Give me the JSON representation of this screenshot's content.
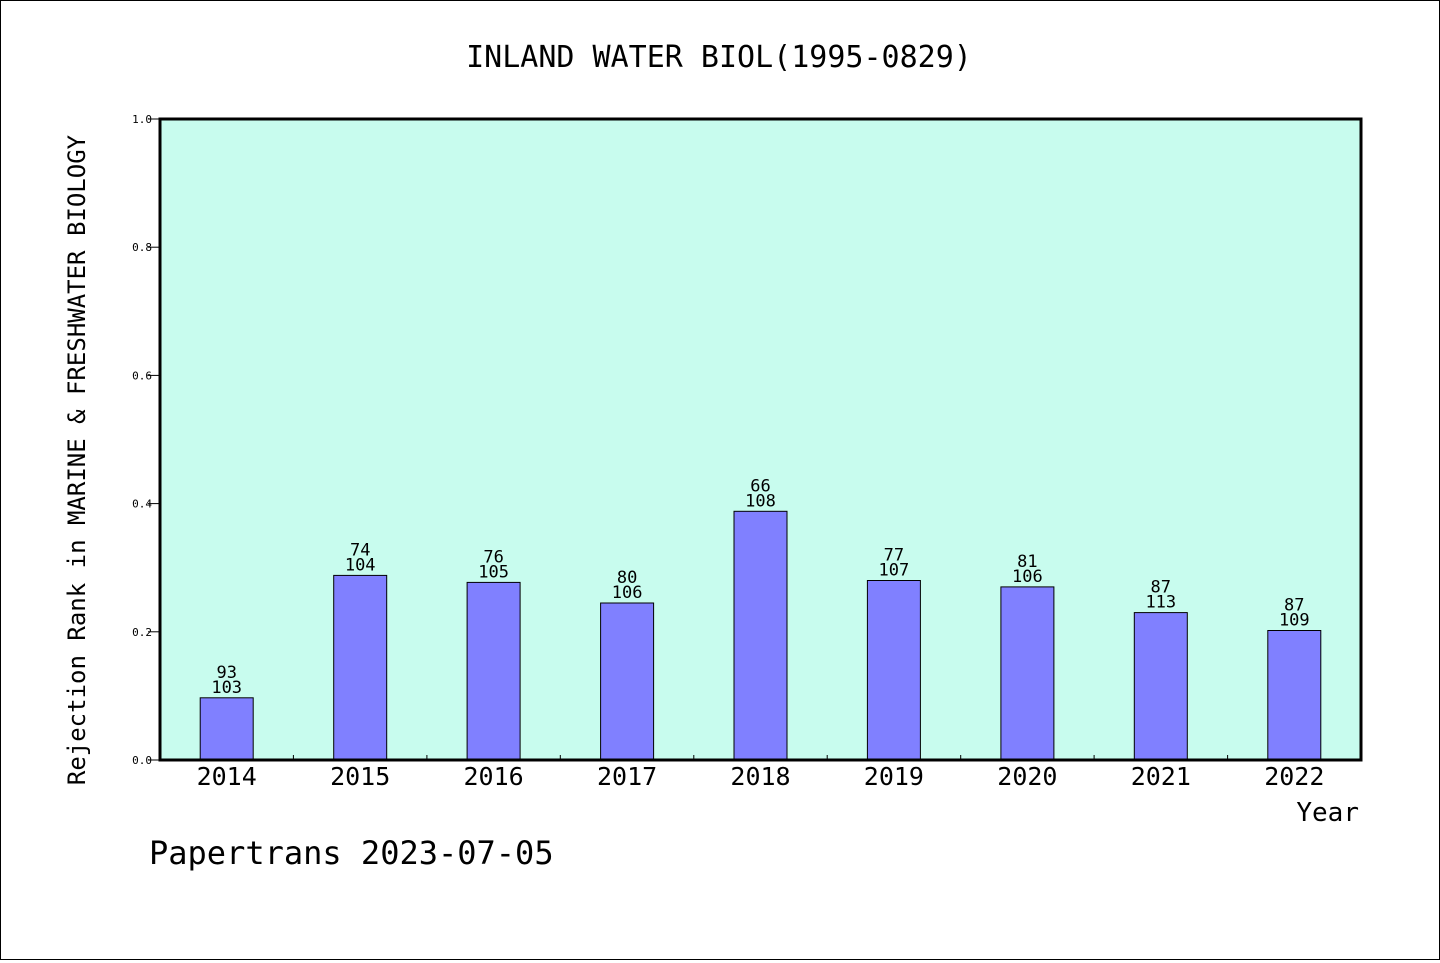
{
  "chart_data": {
    "type": "bar",
    "title": "INLAND WATER BIOL(1995-0829)",
    "xlabel": "Year",
    "ylabel": "Rejection Rank in MARINE & FRESHWATER BIOLOGY",
    "footer": "Papertrans 2023-07-05",
    "categories": [
      "2014",
      "2015",
      "2016",
      "2017",
      "2018",
      "2019",
      "2020",
      "2021",
      "2022"
    ],
    "values": [
      0.097,
      0.288,
      0.277,
      0.245,
      0.388,
      0.28,
      0.27,
      0.23,
      0.202
    ],
    "label_top": [
      "93",
      "74",
      "76",
      "80",
      "66",
      "77",
      "81",
      "87",
      "87"
    ],
    "label_bottom": [
      "103",
      "104",
      "105",
      "106",
      "108",
      "107",
      "106",
      "113",
      "109"
    ],
    "ylim": [
      0,
      1.0
    ],
    "yticks": [
      "0.0",
      "0.2",
      "0.4",
      "0.6",
      "0.8",
      "1.0"
    ],
    "colors": {
      "plot_background": "#c8fcee",
      "bar_fill": "#8080ff",
      "axis": "#000000"
    },
    "grid": false,
    "legend": "none"
  }
}
